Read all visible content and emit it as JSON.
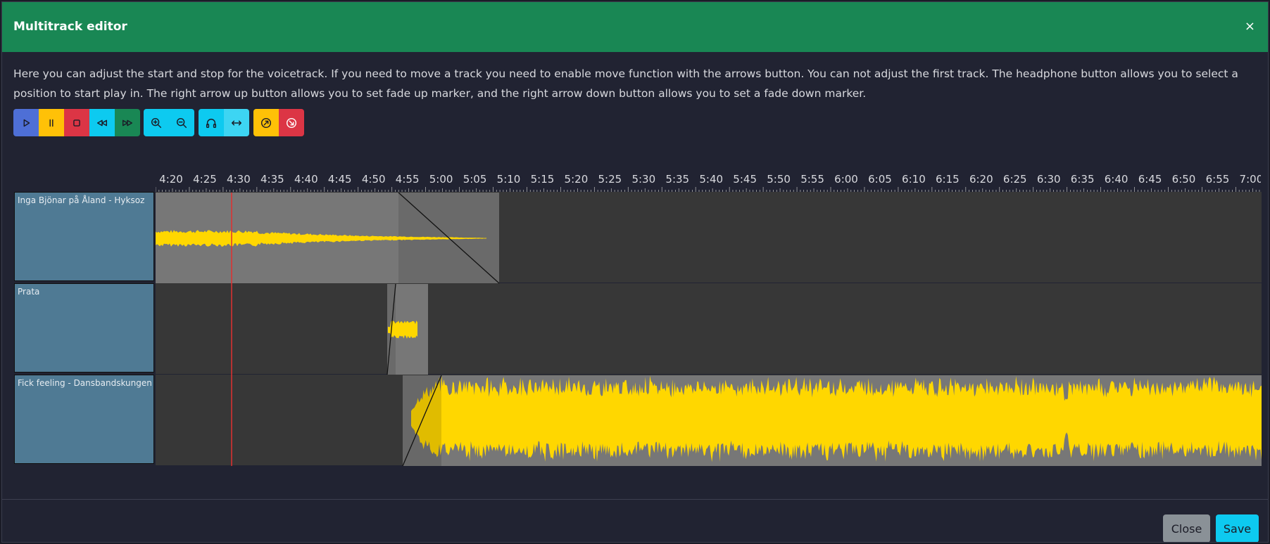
{
  "header": {
    "title": "Multitrack editor",
    "close_symbol": "×"
  },
  "description": "Here you can adjust the start and stop for the voicetrack. If you need to move a track you need to enable move function with the arrows button. You can not adjust the first track. The headphone button allows you to select a position to start play in. The right arrow up button allows you to set fade up marker, and the right arrow down button allows you to set a fade down marker.",
  "toolbar": {
    "transport": [
      {
        "icon": "play-icon",
        "color": "#4e6fd6"
      },
      {
        "icon": "pause-icon",
        "color": "#ffc107"
      },
      {
        "icon": "stop-icon",
        "color": "#dc3545"
      },
      {
        "icon": "rewind-icon",
        "color": "#0dcaf0"
      },
      {
        "icon": "fast-forward-icon",
        "color": "#198754"
      }
    ],
    "zoom": [
      {
        "icon": "zoom-in-icon",
        "color": "#0dcaf0"
      },
      {
        "icon": "zoom-out-icon",
        "color": "#0dcaf0"
      }
    ],
    "mode": [
      {
        "icon": "headphones-icon",
        "color": "#0dcaf0"
      },
      {
        "icon": "move-arrows-icon",
        "color": "#3dd5f3"
      }
    ],
    "fade": [
      {
        "icon": "fade-up-icon",
        "color": "#ffc107"
      },
      {
        "icon": "fade-down-icon",
        "color": "#dc3545"
      }
    ]
  },
  "timeline": {
    "labels": [
      "4:20",
      "4:25",
      "4:30",
      "4:35",
      "4:40",
      "4:45",
      "4:50",
      "4:55",
      "5:00",
      "5:05",
      "5:10",
      "5:15",
      "5:20",
      "5:25",
      "5:30",
      "5:35",
      "5:40",
      "5:45",
      "5:50",
      "5:55",
      "6:00",
      "6:05",
      "6:10",
      "6:15",
      "6:20",
      "6:25",
      "6:30",
      "6:35",
      "6:40",
      "6:45",
      "6:50",
      "6:55",
      "7:00"
    ],
    "playhead": "4:29"
  },
  "tracks": [
    {
      "name": "Inga Bjönar på Åland - Hyksoz"
    },
    {
      "name": "Prata"
    },
    {
      "name": "Fick feeling - Dansbandskungen"
    }
  ],
  "colors": {
    "waveform": "#ffd700",
    "clip": "#777777",
    "playhead": "#e03030"
  },
  "footer": {
    "close_label": "Close",
    "save_label": "Save"
  }
}
